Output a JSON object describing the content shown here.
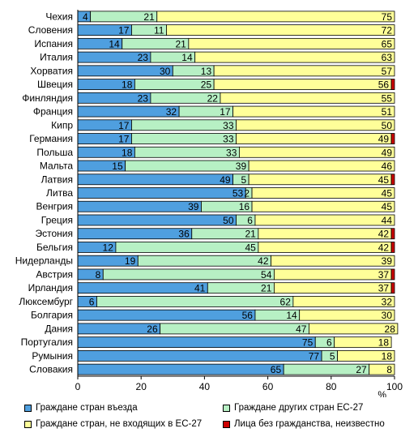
{
  "chart_data": {
    "type": "bar",
    "orientation": "horizontal",
    "stacked": true,
    "categories": [
      "Чехия",
      "Словения",
      "Испания",
      "Италия",
      "Хорватия",
      "Швеция",
      "Финляндия",
      "Франция",
      "Кипр",
      "Германия",
      "Польша",
      "Мальта",
      "Латвия",
      "Литва",
      "Венгрия",
      "Греция",
      "Эстония",
      "Бельгия",
      "Нидерланды",
      "Австрия",
      "Ирландия",
      "Люксембург",
      "Болгария",
      "Дания",
      "Португалия",
      "Румыния",
      "Словакия"
    ],
    "series": [
      {
        "name": "Граждане стран въезда",
        "color": "#4f9fdf",
        "values": [
          4,
          17,
          14,
          23,
          30,
          18,
          23,
          32,
          17,
          17,
          18,
          15,
          49,
          53,
          39,
          50,
          36,
          12,
          19,
          8,
          41,
          6,
          56,
          26,
          75,
          77,
          65
        ]
      },
      {
        "name": "Граждане других стран ЕС-27",
        "color": "#b7f0c4",
        "values": [
          21,
          11,
          21,
          14,
          13,
          25,
          22,
          17,
          33,
          33,
          33,
          39,
          5,
          2,
          16,
          6,
          21,
          45,
          42,
          54,
          21,
          62,
          14,
          47,
          6,
          5,
          27
        ]
      },
      {
        "name": "Граждане стран, не входящих в ЕС-27",
        "color": "#ffff99",
        "values": [
          75,
          72,
          65,
          63,
          57,
          56,
          55,
          51,
          50,
          49,
          49,
          46,
          45,
          45,
          45,
          44,
          42,
          42,
          39,
          37,
          37,
          32,
          30,
          28,
          18,
          18,
          8
        ]
      },
      {
        "name": "Лица без гражданства, неизвестно",
        "color": "#cc0000",
        "values": [
          0,
          0,
          0,
          0,
          0,
          1,
          0,
          0,
          0,
          1,
          0,
          0,
          1,
          0,
          0,
          0,
          1,
          1,
          0,
          1,
          1,
          0,
          0,
          0,
          0,
          0,
          0
        ]
      }
    ],
    "xlim": [
      0,
      100
    ],
    "xticks": [
      0,
      20,
      40,
      60,
      80,
      100
    ],
    "xlabel": "%",
    "grid": false,
    "legend_position": "bottom"
  }
}
